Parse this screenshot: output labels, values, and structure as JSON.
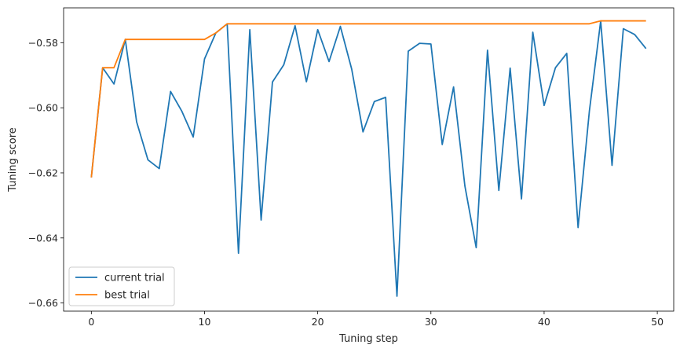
{
  "chart_data": {
    "type": "line",
    "title": "",
    "xlabel": "Tuning step",
    "ylabel": "Tuning score",
    "xlim": [
      -2.45,
      51.45
    ],
    "ylim": [
      -0.6625,
      -0.5693
    ],
    "xticks": [
      0,
      10,
      20,
      30,
      40,
      50
    ],
    "yticks": [
      -0.66,
      -0.64,
      -0.62,
      -0.6,
      -0.58
    ],
    "xtick_labels": [
      "0",
      "10",
      "20",
      "30",
      "40",
      "50"
    ],
    "ytick_labels": [
      "−0.66",
      "−0.64",
      "−0.62",
      "−0.60",
      "−0.58"
    ],
    "grid": false,
    "legend_position": "bottom-left",
    "x": [
      0,
      1,
      2,
      3,
      4,
      5,
      6,
      7,
      8,
      9,
      10,
      11,
      12,
      13,
      14,
      15,
      16,
      17,
      18,
      19,
      20,
      21,
      22,
      23,
      24,
      25,
      26,
      27,
      28,
      29,
      30,
      31,
      32,
      33,
      34,
      35,
      36,
      37,
      38,
      39,
      40,
      41,
      42,
      43,
      44,
      45,
      46,
      47,
      48,
      49
    ],
    "series": [
      {
        "name": "current trial",
        "color": "#1f77b4",
        "values": [
          -0.6214,
          -0.5877,
          -0.5927,
          -0.579,
          -0.6043,
          -0.616,
          -0.6187,
          -0.595,
          -0.6011,
          -0.609,
          -0.585,
          -0.577,
          -0.5742,
          -0.6447,
          -0.576,
          -0.6345,
          -0.5921,
          -0.5868,
          -0.5748,
          -0.592,
          -0.576,
          -0.5858,
          -0.575,
          -0.5881,
          -0.6074,
          -0.5981,
          -0.5968,
          -0.6579,
          -0.5826,
          -0.5802,
          -0.5804,
          -0.6113,
          -0.5936,
          -0.624,
          -0.643,
          -0.5823,
          -0.6254,
          -0.5878,
          -0.628,
          -0.5768,
          -0.5993,
          -0.5877,
          -0.5833,
          -0.6368,
          -0.601,
          -0.5733,
          -0.6177,
          -0.5757,
          -0.5775,
          -0.5818
        ]
      },
      {
        "name": "best trial",
        "color": "#ff7f0e",
        "values": [
          -0.6214,
          -0.5877,
          -0.5877,
          -0.579,
          -0.579,
          -0.579,
          -0.579,
          -0.579,
          -0.579,
          -0.579,
          -0.579,
          -0.577,
          -0.5742,
          -0.5742,
          -0.5742,
          -0.5742,
          -0.5742,
          -0.5742,
          -0.5742,
          -0.5742,
          -0.5742,
          -0.5742,
          -0.5742,
          -0.5742,
          -0.5742,
          -0.5742,
          -0.5742,
          -0.5742,
          -0.5742,
          -0.5742,
          -0.5742,
          -0.5742,
          -0.5742,
          -0.5742,
          -0.5742,
          -0.5742,
          -0.5742,
          -0.5742,
          -0.5742,
          -0.5742,
          -0.5742,
          -0.5742,
          -0.5742,
          -0.5742,
          -0.5742,
          -0.5733,
          -0.5733,
          -0.5733,
          -0.5733,
          -0.5733
        ]
      }
    ]
  }
}
